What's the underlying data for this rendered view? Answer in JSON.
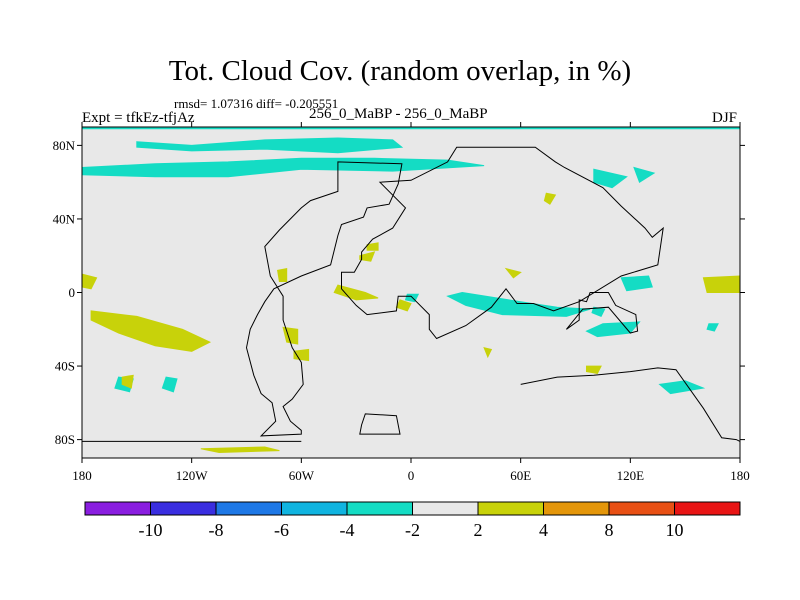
{
  "chart_data": {
    "type": "map",
    "title": "Tot. Cloud Cov. (random overlap, in %)",
    "stats": "rmsd= 1.07316 diff= -0.205551",
    "left_label": "Expt = tfkEz-tfjAz",
    "center_label": "256_0_MaBP - 256_0_MaBP",
    "right_label": "DJF",
    "x_ticks": [
      "180",
      "120W",
      "60W",
      "0",
      "60E",
      "120E",
      "180"
    ],
    "x_tick_values": [
      -180,
      -120,
      -60,
      0,
      60,
      120,
      180
    ],
    "y_ticks": [
      "80N",
      "40N",
      "0",
      "40S",
      "80S"
    ],
    "y_tick_values": [
      80,
      40,
      0,
      -40,
      -80
    ],
    "xlim": [
      -180,
      180
    ],
    "ylim": [
      -90,
      90
    ],
    "background_color": "#e8e8e8",
    "colorbar": {
      "labels": [
        "-10",
        "-8",
        "-6",
        "-4",
        "-2",
        "2",
        "4",
        "8",
        "10"
      ],
      "colors": [
        "#8a1ee0",
        "#3a2ee0",
        "#1e78e6",
        "#10b4e0",
        "#14dcc4",
        "#e8e8e8",
        "#c8d20a",
        "#e4960a",
        "#e85014",
        "#e81414"
      ]
    },
    "regions": [
      {
        "sign": "negative",
        "color": "#14dcc4",
        "lonlat": [
          [
            -150,
            82
          ],
          [
            -120,
            80
          ],
          [
            -80,
            83
          ],
          [
            -40,
            84
          ],
          [
            -10,
            83
          ],
          [
            -5,
            79
          ],
          [
            -40,
            76
          ],
          [
            -80,
            78
          ],
          [
            -120,
            77
          ],
          [
            -150,
            79
          ]
        ]
      },
      {
        "sign": "negative",
        "color": "#14dcc4",
        "lonlat": [
          [
            -180,
            68
          ],
          [
            -140,
            70
          ],
          [
            -100,
            71
          ],
          [
            -60,
            73
          ],
          [
            -20,
            73
          ],
          [
            20,
            72
          ],
          [
            40,
            69
          ],
          [
            -10,
            66
          ],
          [
            -60,
            67
          ],
          [
            -100,
            63
          ],
          [
            -140,
            63
          ],
          [
            -180,
            64
          ]
        ]
      },
      {
        "sign": "negative",
        "color": "#14dcc4",
        "lonlat": [
          [
            180,
            91
          ],
          [
            180,
            89
          ],
          [
            -180,
            89
          ],
          [
            -180,
            91
          ]
        ]
      },
      {
        "sign": "negative",
        "color": "#14dcc4",
        "lonlat": [
          [
            28,
            0
          ],
          [
            60,
            -5
          ],
          [
            80,
            -8
          ],
          [
            98,
            -9
          ],
          [
            85,
            -13
          ],
          [
            50,
            -12
          ],
          [
            30,
            -7
          ],
          [
            20,
            -2
          ]
        ]
      },
      {
        "sign": "negative",
        "color": "#14dcc4",
        "lonlat": [
          [
            105,
            -17
          ],
          [
            125,
            -16
          ],
          [
            120,
            -22
          ],
          [
            102,
            -24
          ],
          [
            96,
            -21
          ]
        ]
      },
      {
        "sign": "negative",
        "color": "#14dcc4",
        "lonlat": [
          [
            115,
            8
          ],
          [
            130,
            9
          ],
          [
            132,
            3
          ],
          [
            118,
            1
          ]
        ]
      },
      {
        "sign": "negative",
        "color": "#14dcc4",
        "lonlat": [
          [
            100,
            -8
          ],
          [
            106,
            -9
          ],
          [
            104,
            -13
          ],
          [
            99,
            -11
          ]
        ]
      },
      {
        "sign": "negative",
        "color": "#14dcc4",
        "lonlat": [
          [
            -160,
            -46
          ],
          [
            -152,
            -47
          ],
          [
            -154,
            -54
          ],
          0,
          [
            -162,
            -52
          ]
        ]
      },
      {
        "sign": "negative",
        "color": "#14dcc4",
        "lonlat": [
          [
            -134,
            -46
          ],
          [
            -128,
            -47
          ],
          [
            -130,
            -54
          ],
          [
            -136,
            -52
          ]
        ]
      },
      {
        "sign": "negative",
        "color": "#14dcc4",
        "lonlat": [
          [
            136,
            -50
          ],
          [
            150,
            -48
          ],
          [
            160,
            -52
          ],
          [
            142,
            -55
          ]
        ]
      },
      {
        "sign": "negative",
        "color": "#14dcc4",
        "lonlat": [
          [
            100,
            67
          ],
          [
            118,
            63
          ],
          [
            110,
            57
          ],
          [
            100,
            60
          ]
        ]
      },
      {
        "sign": "negative",
        "color": "#14dcc4",
        "lonlat": [
          [
            122,
            68
          ],
          [
            133,
            65
          ],
          [
            125,
            60
          ]
        ]
      },
      {
        "sign": "negative",
        "color": "#14dcc4",
        "lonlat": [
          [
            -2,
            -1
          ],
          [
            4,
            -1
          ],
          [
            2,
            -5
          ],
          [
            -3,
            -4
          ]
        ]
      },
      {
        "sign": "negative",
        "color": "#14dcc4",
        "lonlat": [
          [
            163,
            -17
          ],
          [
            168,
            -17
          ],
          [
            166,
            -21
          ],
          [
            162,
            -20
          ]
        ]
      },
      {
        "sign": "positive",
        "color": "#c8d20a",
        "lonlat": [
          [
            -175,
            -10
          ],
          [
            -150,
            -13
          ],
          [
            -125,
            -20
          ],
          [
            -110,
            -27
          ],
          [
            -120,
            -32
          ],
          [
            -140,
            -29
          ],
          [
            -160,
            -22
          ],
          [
            -175,
            -15
          ]
        ]
      },
      {
        "sign": "positive",
        "color": "#c8d20a",
        "lonlat": [
          [
            -180,
            10
          ],
          [
            -172,
            8
          ],
          [
            -175,
            2
          ],
          [
            -180,
            3
          ]
        ]
      },
      {
        "sign": "positive",
        "color": "#c8d20a",
        "lonlat": [
          [
            160,
            8
          ],
          [
            180,
            9
          ],
          [
            180,
            0
          ],
          [
            162,
            0
          ]
        ]
      },
      {
        "sign": "positive",
        "color": "#c8d20a",
        "lonlat": [
          [
            -40,
            4
          ],
          [
            -25,
            0
          ],
          [
            -18,
            -3
          ],
          [
            -30,
            -4
          ],
          [
            -42,
            0
          ]
        ]
      },
      {
        "sign": "positive",
        "color": "#c8d20a",
        "lonlat": [
          [
            -70,
            -19
          ],
          [
            -62,
            -20
          ],
          [
            -62,
            -28
          ],
          [
            -68,
            -27
          ]
        ]
      },
      {
        "sign": "positive",
        "color": "#c8d20a",
        "lonlat": [
          [
            -64,
            -32
          ],
          [
            -56,
            -31
          ],
          [
            -56,
            -37
          ],
          [
            -64,
            -36
          ]
        ]
      },
      {
        "sign": "positive",
        "color": "#c8d20a",
        "lonlat": [
          [
            -115,
            -85
          ],
          [
            -80,
            -84
          ],
          [
            -72,
            -86
          ],
          [
            -105,
            -87
          ]
        ]
      },
      {
        "sign": "positive",
        "color": "#c8d20a",
        "lonlat": [
          [
            -158,
            -46
          ],
          [
            -152,
            -45
          ],
          [
            -153,
            -52
          ],
          [
            -158,
            -50
          ]
        ]
      },
      {
        "sign": "positive",
        "color": "#c8d20a",
        "lonlat": [
          [
            -73,
            12
          ],
          [
            -68,
            13
          ],
          [
            -68,
            6
          ],
          [
            -72,
            6
          ]
        ]
      },
      {
        "sign": "positive",
        "color": "#c8d20a",
        "lonlat": [
          [
            -24,
            26
          ],
          [
            -18,
            27
          ],
          [
            -18,
            23
          ],
          [
            -24,
            23
          ]
        ]
      },
      {
        "sign": "positive",
        "color": "#c8d20a",
        "lonlat": [
          [
            -28,
            20
          ],
          [
            -20,
            22
          ],
          [
            -22,
            17
          ],
          [
            -28,
            18
          ]
        ]
      },
      {
        "sign": "positive",
        "color": "#c8d20a",
        "lonlat": [
          [
            74,
            54
          ],
          [
            79,
            53
          ],
          [
            76,
            48
          ],
          [
            73,
            50
          ]
        ]
      },
      {
        "sign": "positive",
        "color": "#c8d20a",
        "lonlat": [
          [
            52,
            13
          ],
          [
            60,
            11
          ],
          [
            56,
            8
          ]
        ]
      },
      {
        "sign": "positive",
        "color": "#c8d20a",
        "lonlat": [
          [
            96,
            -40
          ],
          [
            104,
            -40
          ],
          [
            102,
            -44
          ],
          [
            96,
            -43
          ]
        ]
      },
      {
        "sign": "positive",
        "color": "#c8d20a",
        "lonlat": [
          [
            40,
            -30
          ],
          [
            44,
            -31
          ],
          [
            42,
            -35
          ]
        ]
      },
      {
        "sign": "positive",
        "color": "#c8d20a",
        "lonlat": [
          [
            -6,
            -4
          ],
          [
            0,
            -6
          ],
          [
            -2,
            -10
          ],
          [
            -8,
            -8
          ]
        ]
      }
    ],
    "continents": [
      {
        "name": "americas",
        "lonlat": [
          [
            -5,
            70
          ],
          [
            -40,
            71
          ],
          [
            -40,
            55
          ],
          [
            -55,
            50
          ],
          [
            -60,
            46
          ],
          [
            -72,
            34
          ],
          [
            -80,
            25
          ],
          [
            -77,
            9
          ],
          [
            -70,
            -2
          ],
          [
            -70,
            -15
          ],
          [
            -65,
            -30
          ],
          [
            -60,
            -38
          ],
          [
            -59,
            -50
          ],
          [
            -65,
            -58
          ],
          [
            -70,
            -62
          ],
          [
            -66,
            -70
          ],
          [
            -60,
            -75
          ],
          [
            -60,
            -77
          ],
          [
            -82,
            -78
          ],
          [
            -74,
            -70
          ],
          [
            -76,
            -60
          ],
          [
            -82,
            -55
          ],
          [
            -86,
            -45
          ],
          [
            -90,
            -30
          ],
          [
            -88,
            -20
          ],
          [
            -84,
            -12
          ],
          [
            -80,
            -5
          ],
          [
            -75,
            2
          ],
          [
            -60,
            9
          ],
          [
            -44,
            15
          ],
          [
            -40,
            31
          ],
          [
            -38,
            37
          ],
          [
            -26,
            41
          ],
          [
            -24,
            46
          ],
          [
            -12,
            48
          ],
          [
            -7,
            59
          ]
        ]
      },
      {
        "name": "eurasia-africa",
        "lonlat": [
          [
            25,
            79
          ],
          [
            68,
            79
          ],
          [
            79,
            71
          ],
          [
            84,
            68
          ],
          [
            105,
            57
          ],
          [
            115,
            47
          ],
          [
            128,
            35
          ],
          [
            132,
            30
          ],
          [
            138,
            35
          ],
          [
            135,
            15
          ],
          [
            115,
            9
          ],
          [
            92,
            -5
          ],
          [
            78,
            -10
          ],
          [
            67,
            -6
          ],
          [
            58,
            -6
          ],
          [
            52,
            2
          ],
          [
            44,
            -8
          ],
          [
            30,
            -18
          ],
          [
            14,
            -25
          ],
          [
            10,
            -20
          ],
          [
            10,
            -12
          ],
          [
            0,
            -2
          ],
          [
            -7,
            -2
          ],
          [
            -8,
            -10
          ],
          [
            -24,
            -12
          ],
          [
            -30,
            -7
          ],
          [
            -38,
            2
          ],
          [
            -38,
            11
          ],
          [
            -31,
            11
          ],
          [
            -27,
            18
          ],
          [
            -27,
            22
          ],
          [
            -21,
            29
          ],
          [
            -10,
            35
          ],
          [
            -3,
            46
          ],
          [
            -17,
            60
          ],
          [
            0,
            61
          ],
          [
            20,
            71
          ]
        ]
      },
      {
        "name": "australia",
        "lonlat": [
          [
            85,
            -20
          ],
          [
            94,
            -9
          ],
          [
            108,
            -8
          ],
          [
            120,
            -22
          ],
          [
            124,
            -21
          ],
          [
            123,
            -12
          ],
          [
            112,
            -7
          ],
          [
            108,
            0
          ],
          [
            98,
            0
          ],
          [
            96,
            -5
          ],
          [
            92,
            -4
          ],
          [
            92,
            -15
          ]
        ]
      },
      {
        "name": "antarctic-island",
        "lonlat": [
          [
            -25,
            -66
          ],
          [
            -8,
            -67
          ],
          [
            -6,
            -77
          ],
          [
            -28,
            -77
          ],
          [
            -27,
            -72
          ]
        ]
      },
      {
        "name": "antarctica-west",
        "lonlat": [
          [
            -180,
            -81
          ],
          [
            -60,
            -81
          ]
        ]
      },
      {
        "name": "antarctica-east",
        "lonlat": [
          [
            60,
            -50
          ],
          [
            80,
            -46
          ],
          [
            100,
            -45
          ],
          [
            120,
            -43
          ],
          [
            135,
            -41
          ],
          [
            145,
            -42
          ],
          [
            160,
            -63
          ],
          [
            170,
            -79
          ],
          [
            178,
            -80
          ],
          [
            180,
            -81
          ]
        ]
      }
    ]
  }
}
